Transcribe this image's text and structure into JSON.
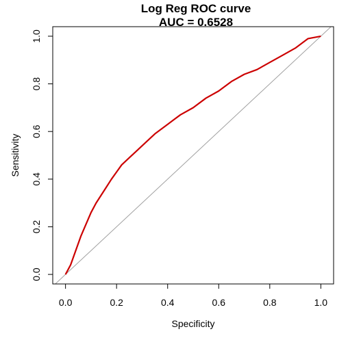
{
  "chart_data": {
    "type": "line",
    "title": "Log Reg ROC curve",
    "subtitle": "AUC = 0.6528",
    "xlabel": "Specificity",
    "ylabel": "Sensitivity",
    "xlim": [
      -0.05,
      1.05
    ],
    "ylim": [
      -0.04,
      1.04
    ],
    "x_ticks": [
      "0.0",
      "0.2",
      "0.4",
      "0.6",
      "0.8",
      "1.0"
    ],
    "y_ticks": [
      "0.0",
      "0.2",
      "0.4",
      "0.6",
      "0.8",
      "1.0"
    ],
    "grid": false,
    "legend": "none",
    "series": [
      {
        "color": "#cc0000",
        "x": [
          0.0,
          0.02,
          0.04,
          0.06,
          0.08,
          0.1,
          0.12,
          0.15,
          0.18,
          0.2,
          0.22,
          0.25,
          0.28,
          0.3,
          0.35,
          0.4,
          0.45,
          0.5,
          0.55,
          0.6,
          0.65,
          0.7,
          0.75,
          0.8,
          0.85,
          0.9,
          0.95,
          1.0
        ],
        "y": [
          0.0,
          0.04,
          0.1,
          0.16,
          0.21,
          0.26,
          0.3,
          0.35,
          0.4,
          0.43,
          0.46,
          0.49,
          0.52,
          0.54,
          0.59,
          0.63,
          0.67,
          0.7,
          0.74,
          0.77,
          0.81,
          0.84,
          0.86,
          0.89,
          0.92,
          0.95,
          0.99,
          1.0
        ]
      }
    ],
    "reference_line": {
      "color": "#a0a0a0",
      "x": [
        -0.05,
        1.05
      ],
      "y": [
        -0.05,
        1.05
      ]
    }
  }
}
